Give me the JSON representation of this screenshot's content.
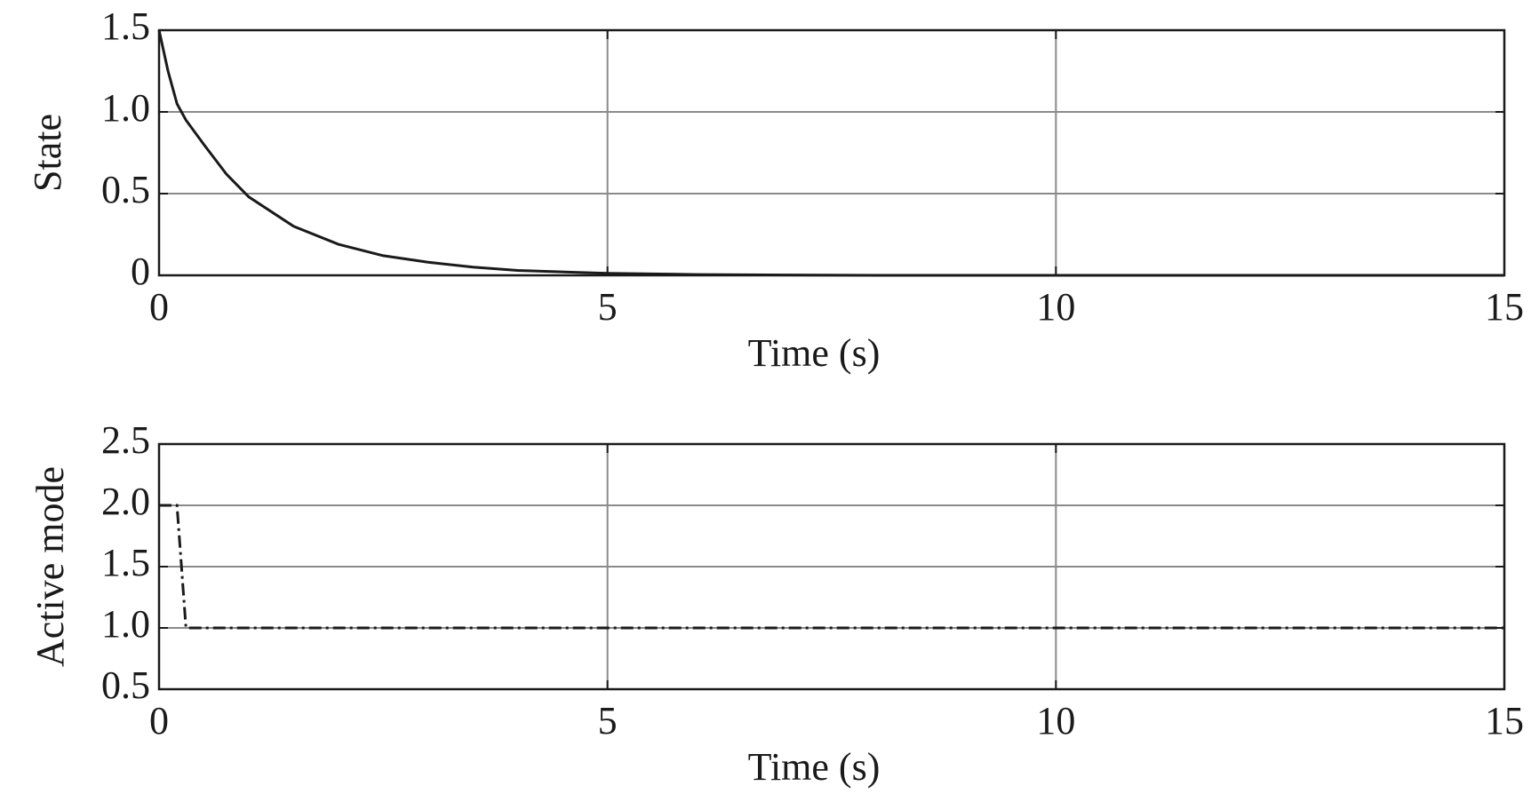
{
  "chart_data": [
    {
      "type": "line",
      "xlabel": "Time (s)",
      "ylabel": "State",
      "x": [
        0,
        0.1,
        0.2,
        0.3,
        0.5,
        0.75,
        1,
        1.5,
        2,
        2.5,
        3,
        3.5,
        4,
        5,
        6,
        7,
        8,
        10,
        12,
        15
      ],
      "values": [
        1.5,
        1.25,
        1.05,
        0.95,
        0.8,
        0.62,
        0.48,
        0.3,
        0.19,
        0.12,
        0.08,
        0.05,
        0.03,
        0.012,
        0.005,
        0.002,
        0,
        0,
        0,
        0
      ],
      "color": "#1a1a1a",
      "line_style": "solid",
      "xlim": [
        0,
        15
      ],
      "xticks": [
        0,
        5,
        10,
        15
      ],
      "ylim": [
        0,
        1.5
      ],
      "yticks": [
        0,
        0.5,
        {
          "value": 1,
          "label": "1.0"
        },
        1.5
      ],
      "grid": true
    },
    {
      "type": "line",
      "xlabel": "Time (s)",
      "ylabel": "Active mode",
      "x": [
        0,
        0.2,
        0.3,
        15
      ],
      "values": [
        2,
        2,
        1,
        1
      ],
      "color": "#1a1a1a",
      "line_style": "dashdot",
      "xlim": [
        0,
        15
      ],
      "xticks": [
        0,
        5,
        10,
        15
      ],
      "ylim": [
        0.5,
        2.5
      ],
      "yticks": [
        0.5,
        {
          "value": 1,
          "label": "1.0"
        },
        1.5,
        {
          "value": 2,
          "label": "2.0"
        },
        2.5
      ],
      "grid": true
    }
  ]
}
